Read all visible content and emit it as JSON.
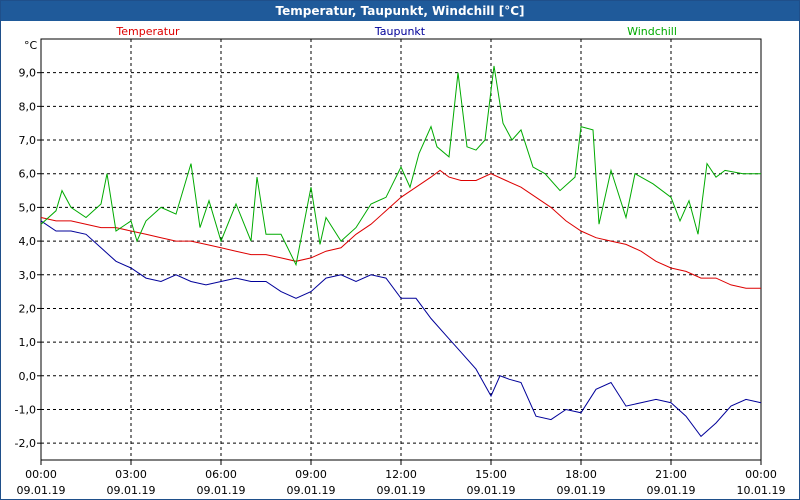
{
  "window": {
    "title": "Temperatur, Taupunkt, Windchill [°C]"
  },
  "chart_data": {
    "type": "line",
    "title": "Temperatur, Taupunkt, Windchill [°C]",
    "ylabel": "°C",
    "ylim": [
      -2.5,
      10
    ],
    "xlim": [
      0,
      24
    ],
    "grid": true,
    "legend_placement": "top",
    "y_ticks": [
      "9,0",
      "8,0",
      "7,0",
      "6,0",
      "5,0",
      "4,0",
      "3,0",
      "2,0",
      "1,0",
      "0,0",
      "-1,0",
      "-2,0"
    ],
    "y_tick_values": [
      9,
      8,
      7,
      6,
      5,
      4,
      3,
      2,
      1,
      0,
      -1,
      -2
    ],
    "x_ticks": [
      {
        "time": "00:00",
        "date": "09.01.19",
        "h": 0
      },
      {
        "time": "03:00",
        "date": "09.01.19",
        "h": 3
      },
      {
        "time": "06:00",
        "date": "09.01.19",
        "h": 6
      },
      {
        "time": "09:00",
        "date": "09.01.19",
        "h": 9
      },
      {
        "time": "12:00",
        "date": "09.01.19",
        "h": 12
      },
      {
        "time": "15:00",
        "date": "09.01.19",
        "h": 15
      },
      {
        "time": "18:00",
        "date": "09.01.19",
        "h": 18
      },
      {
        "time": "21:00",
        "date": "09.01.19",
        "h": 21
      },
      {
        "time": "00:00",
        "date": "10.01.19",
        "h": 24
      }
    ],
    "series": [
      {
        "name": "Temperatur",
        "color": "#dd0000",
        "points": [
          [
            0,
            4.7
          ],
          [
            0.5,
            4.6
          ],
          [
            1,
            4.6
          ],
          [
            1.5,
            4.5
          ],
          [
            2,
            4.4
          ],
          [
            2.5,
            4.4
          ],
          [
            3,
            4.3
          ],
          [
            3.5,
            4.2
          ],
          [
            4,
            4.1
          ],
          [
            4.5,
            4.0
          ],
          [
            5,
            4.0
          ],
          [
            5.5,
            3.9
          ],
          [
            6,
            3.8
          ],
          [
            6.5,
            3.7
          ],
          [
            7,
            3.6
          ],
          [
            7.5,
            3.6
          ],
          [
            8,
            3.5
          ],
          [
            8.5,
            3.4
          ],
          [
            9,
            3.5
          ],
          [
            9.5,
            3.7
          ],
          [
            10,
            3.8
          ],
          [
            10.5,
            4.2
          ],
          [
            11,
            4.5
          ],
          [
            11.5,
            4.9
          ],
          [
            12,
            5.3
          ],
          [
            12.5,
            5.6
          ],
          [
            13,
            5.9
          ],
          [
            13.3,
            6.1
          ],
          [
            13.6,
            5.9
          ],
          [
            14,
            5.8
          ],
          [
            14.5,
            5.8
          ],
          [
            15,
            6.0
          ],
          [
            15.5,
            5.8
          ],
          [
            16,
            5.6
          ],
          [
            16.5,
            5.3
          ],
          [
            17,
            5.0
          ],
          [
            17.5,
            4.6
          ],
          [
            18,
            4.3
          ],
          [
            18.5,
            4.1
          ],
          [
            19,
            4.0
          ],
          [
            19.5,
            3.9
          ],
          [
            20,
            3.7
          ],
          [
            20.5,
            3.4
          ],
          [
            21,
            3.2
          ],
          [
            21.5,
            3.1
          ],
          [
            22,
            2.9
          ],
          [
            22.5,
            2.9
          ],
          [
            23,
            2.7
          ],
          [
            23.5,
            2.6
          ],
          [
            24,
            2.6
          ]
        ]
      },
      {
        "name": "Taupunkt",
        "color": "#000099",
        "points": [
          [
            0,
            4.6
          ],
          [
            0.5,
            4.3
          ],
          [
            1,
            4.3
          ],
          [
            1.5,
            4.2
          ],
          [
            2,
            3.8
          ],
          [
            2.5,
            3.4
          ],
          [
            3,
            3.2
          ],
          [
            3.5,
            2.9
          ],
          [
            4,
            2.8
          ],
          [
            4.5,
            3.0
          ],
          [
            5,
            2.8
          ],
          [
            5.5,
            2.7
          ],
          [
            6,
            2.8
          ],
          [
            6.5,
            2.9
          ],
          [
            7,
            2.8
          ],
          [
            7.5,
            2.8
          ],
          [
            8,
            2.5
          ],
          [
            8.5,
            2.3
          ],
          [
            9,
            2.5
          ],
          [
            9.5,
            2.9
          ],
          [
            10,
            3.0
          ],
          [
            10.5,
            2.8
          ],
          [
            11,
            3.0
          ],
          [
            11.5,
            2.9
          ],
          [
            12,
            2.3
          ],
          [
            12.5,
            2.3
          ],
          [
            13,
            1.7
          ],
          [
            13.5,
            1.2
          ],
          [
            14,
            0.7
          ],
          [
            14.5,
            0.2
          ],
          [
            15,
            -0.6
          ],
          [
            15.3,
            0.0
          ],
          [
            15.6,
            -0.1
          ],
          [
            16,
            -0.2
          ],
          [
            16.5,
            -1.2
          ],
          [
            17,
            -1.3
          ],
          [
            17.5,
            -1.0
          ],
          [
            18,
            -1.1
          ],
          [
            18.5,
            -0.4
          ],
          [
            19,
            -0.2
          ],
          [
            19.5,
            -0.9
          ],
          [
            20,
            -0.8
          ],
          [
            20.5,
            -0.7
          ],
          [
            21,
            -0.8
          ],
          [
            21.5,
            -1.2
          ],
          [
            22,
            -1.8
          ],
          [
            22.5,
            -1.4
          ],
          [
            23,
            -0.9
          ],
          [
            23.5,
            -0.7
          ],
          [
            24,
            -0.8
          ]
        ]
      },
      {
        "name": "Windchill",
        "color": "#00aa00",
        "points": [
          [
            0,
            4.5
          ],
          [
            0.5,
            4.9
          ],
          [
            0.7,
            5.5
          ],
          [
            1,
            5.0
          ],
          [
            1.5,
            4.7
          ],
          [
            2,
            5.1
          ],
          [
            2.2,
            6.0
          ],
          [
            2.5,
            4.3
          ],
          [
            3,
            4.6
          ],
          [
            3.2,
            4.0
          ],
          [
            3.5,
            4.6
          ],
          [
            4,
            5.0
          ],
          [
            4.5,
            4.8
          ],
          [
            5,
            6.3
          ],
          [
            5.3,
            4.4
          ],
          [
            5.6,
            5.2
          ],
          [
            6,
            4.0
          ],
          [
            6.5,
            5.1
          ],
          [
            7,
            4.0
          ],
          [
            7.2,
            5.9
          ],
          [
            7.5,
            4.2
          ],
          [
            8,
            4.2
          ],
          [
            8.5,
            3.3
          ],
          [
            9,
            5.6
          ],
          [
            9.3,
            3.9
          ],
          [
            9.5,
            4.7
          ],
          [
            10,
            4.0
          ],
          [
            10.5,
            4.4
          ],
          [
            11,
            5.1
          ],
          [
            11.5,
            5.3
          ],
          [
            12,
            6.2
          ],
          [
            12.3,
            5.6
          ],
          [
            12.6,
            6.6
          ],
          [
            13,
            7.4
          ],
          [
            13.2,
            6.8
          ],
          [
            13.6,
            6.5
          ],
          [
            13.9,
            9.0
          ],
          [
            14.2,
            6.8
          ],
          [
            14.5,
            6.7
          ],
          [
            14.8,
            7.0
          ],
          [
            15.1,
            9.2
          ],
          [
            15.4,
            7.5
          ],
          [
            15.7,
            7.0
          ],
          [
            16,
            7.3
          ],
          [
            16.4,
            6.2
          ],
          [
            16.8,
            6.0
          ],
          [
            17.3,
            5.5
          ],
          [
            17.8,
            5.9
          ],
          [
            18,
            7.4
          ],
          [
            18.4,
            7.3
          ],
          [
            18.6,
            4.5
          ],
          [
            19,
            6.1
          ],
          [
            19.5,
            4.7
          ],
          [
            19.8,
            6.0
          ],
          [
            20.4,
            5.7
          ],
          [
            21,
            5.3
          ],
          [
            21.3,
            4.6
          ],
          [
            21.6,
            5.2
          ],
          [
            21.9,
            4.2
          ],
          [
            22.2,
            6.3
          ],
          [
            22.5,
            5.9
          ],
          [
            22.8,
            6.1
          ],
          [
            23.4,
            6.0
          ],
          [
            24,
            6.0
          ]
        ]
      }
    ]
  }
}
